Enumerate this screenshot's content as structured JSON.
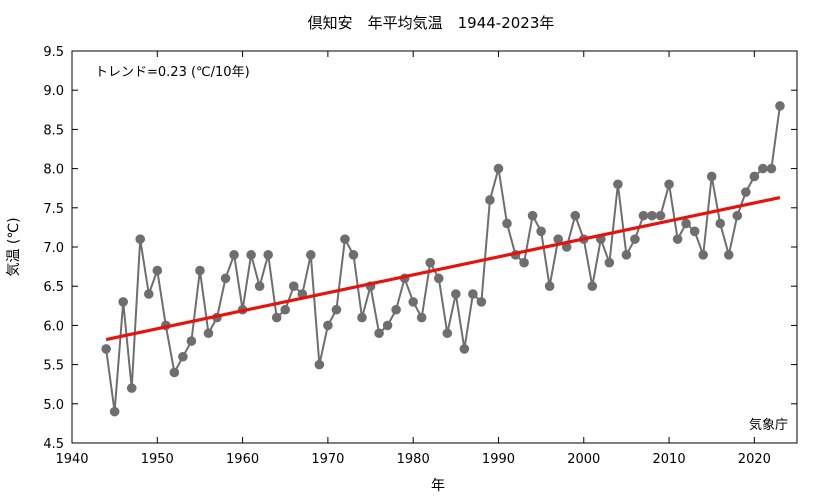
{
  "chart_data": {
    "type": "line",
    "title": "倶知安　年平均気温　1944-2023年",
    "xlabel": "年",
    "ylabel": "気温 (℃)",
    "xlim": [
      1940,
      2025
    ],
    "ylim": [
      4.5,
      9.5
    ],
    "x_ticks": [
      1940,
      1950,
      1960,
      1970,
      1980,
      1990,
      2000,
      2010,
      2020
    ],
    "y_ticks": [
      "4.5",
      "5.0",
      "5.5",
      "6.0",
      "6.5",
      "7.0",
      "7.5",
      "8.0",
      "8.5",
      "9.0",
      "9.5"
    ],
    "grid": false,
    "trend_label": "トレンド=0.23 (℃/10年)",
    "source_label": "気象庁",
    "colors": {
      "series": "#6e6e6e",
      "trend": "#e8120c"
    },
    "series": [
      {
        "x": [
          1944,
          1945,
          1946,
          1947,
          1948,
          1949,
          1950,
          1951,
          1952,
          1953,
          1954,
          1955,
          1956,
          1957,
          1958,
          1959,
          1960,
          1961,
          1962,
          1963,
          1964,
          1965,
          1966,
          1967,
          1968,
          1969,
          1970,
          1971,
          1972,
          1973,
          1974,
          1975,
          1976,
          1977,
          1978,
          1979,
          1980,
          1981,
          1982,
          1983,
          1984,
          1985,
          1986,
          1987,
          1988,
          1989,
          1990,
          1991,
          1992,
          1993,
          1994,
          1995,
          1996,
          1997,
          1998,
          1999,
          2000,
          2001,
          2002,
          2003,
          2004,
          2005,
          2006,
          2007,
          2008,
          2009,
          2010,
          2011,
          2012,
          2013,
          2014,
          2015,
          2016,
          2017,
          2018,
          2019,
          2020,
          2021,
          2022,
          2023
        ],
        "values": [
          5.7,
          4.9,
          6.3,
          5.2,
          7.1,
          6.4,
          6.7,
          6.0,
          5.4,
          5.6,
          5.8,
          6.7,
          5.9,
          6.1,
          6.6,
          6.9,
          6.2,
          6.9,
          6.5,
          6.9,
          6.1,
          6.2,
          6.5,
          6.4,
          6.9,
          5.5,
          6.0,
          6.2,
          7.1,
          6.9,
          6.1,
          6.5,
          5.9,
          6.0,
          6.2,
          6.6,
          6.3,
          6.1,
          6.8,
          6.6,
          5.9,
          6.4,
          5.7,
          6.4,
          6.3,
          7.6,
          8.0,
          7.3,
          6.9,
          6.8,
          7.4,
          7.2,
          6.5,
          7.1,
          7.0,
          7.4,
          7.1,
          6.5,
          7.1,
          6.8,
          7.8,
          6.9,
          7.1,
          7.4,
          7.4,
          7.4,
          7.8,
          7.1,
          7.3,
          7.2,
          6.9,
          7.9,
          7.3,
          6.9,
          7.4,
          7.7,
          7.9,
          8.0,
          8.0,
          8.8
        ]
      }
    ],
    "trend": {
      "x": [
        1944,
        2023
      ],
      "values": [
        5.82,
        7.63
      ]
    }
  }
}
